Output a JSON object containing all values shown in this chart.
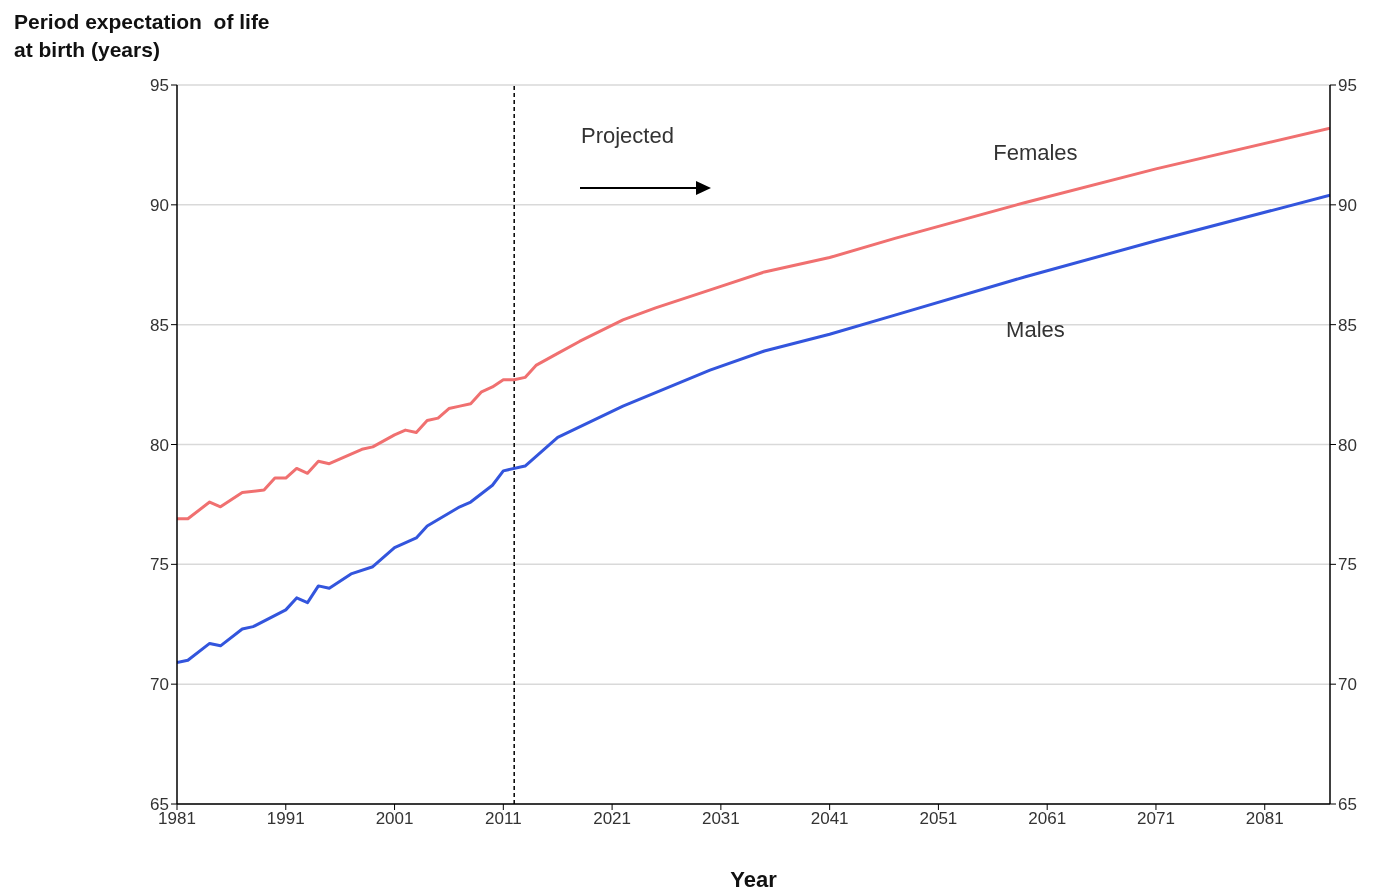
{
  "chart_data": {
    "type": "line",
    "ylabel": "Period expectation  of life at birth (years)",
    "xlabel": "Year",
    "xlim": [
      1981,
      2087
    ],
    "xticks": [
      1981,
      1991,
      2001,
      2011,
      2021,
      2031,
      2041,
      2051,
      2061,
      2071,
      2081
    ],
    "ylim": [
      65,
      95
    ],
    "yticks": [
      65,
      70,
      75,
      80,
      85,
      90,
      95
    ],
    "y2lim": [
      65,
      95
    ],
    "y2ticks": [
      65,
      70,
      75,
      80,
      85,
      90,
      95
    ],
    "grid": "y",
    "marker": "none",
    "line_style": "solid",
    "ref_lines": [
      {
        "axis": "x",
        "value": 2012,
        "line_style": "dashed",
        "color": "#000000"
      }
    ],
    "annotations": [
      "Projected"
    ],
    "series": [
      {
        "name": "Females",
        "color": "#f07070",
        "x": [
          1981,
          1982,
          1984,
          1985,
          1987,
          1989,
          1990,
          1991,
          1992,
          1993,
          1994,
          1995,
          1997,
          1998,
          1999,
          2001,
          2002,
          2003,
          2004,
          2005,
          2006,
          2007,
          2008,
          2009,
          2010,
          2011,
          2012,
          2013,
          2014,
          2016,
          2018,
          2022,
          2025,
          2031,
          2035,
          2041,
          2047,
          2059,
          2071,
          2087
        ],
        "values": [
          76.9,
          76.9,
          77.6,
          77.4,
          78.0,
          78.1,
          78.6,
          78.6,
          79.0,
          78.8,
          79.3,
          79.2,
          79.6,
          79.8,
          79.9,
          80.4,
          80.6,
          80.5,
          81.0,
          81.1,
          81.5,
          81.6,
          81.7,
          82.2,
          82.4,
          82.7,
          82.7,
          82.8,
          83.3,
          83.8,
          84.3,
          85.2,
          85.7,
          86.6,
          87.2,
          87.8,
          88.6,
          90.1,
          91.5,
          93.2
        ]
      },
      {
        "name": "Males",
        "color": "#3355dd",
        "x": [
          1981,
          1982,
          1984,
          1985,
          1987,
          1988,
          1991,
          1992,
          1993,
          1994,
          1995,
          1997,
          1999,
          2001,
          2003,
          2004,
          2007,
          2008,
          2010,
          2011,
          2013,
          2016,
          2022,
          2030,
          2035,
          2041,
          2047,
          2059,
          2071,
          2087
        ],
        "values": [
          70.9,
          71.0,
          71.7,
          71.6,
          72.3,
          72.4,
          73.1,
          73.6,
          73.4,
          74.1,
          74.0,
          74.6,
          74.9,
          75.7,
          76.1,
          76.6,
          77.4,
          77.6,
          78.3,
          78.9,
          79.1,
          80.3,
          81.6,
          83.1,
          83.9,
          84.6,
          85.4,
          87.0,
          88.5,
          90.4
        ]
      }
    ]
  }
}
